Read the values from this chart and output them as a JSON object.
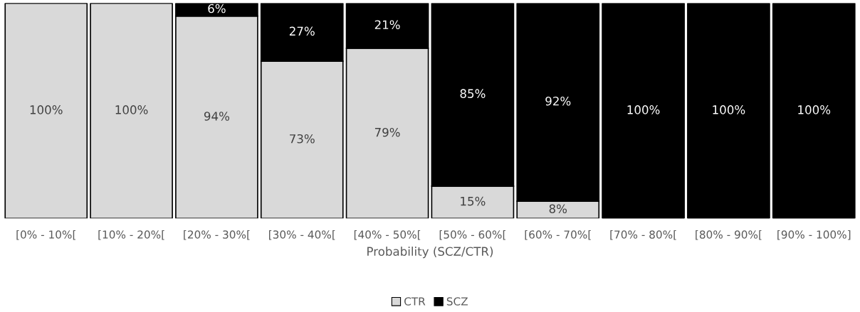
{
  "chart_data": {
    "type": "bar",
    "stacked": true,
    "xlabel": "Probability (SCZ/CTR)",
    "categories": [
      "[0% - 10%[",
      "[10% - 20%[",
      "[20% - 30%[",
      "[30% - 40%[",
      "[40% - 50%[",
      "[50% - 60%[",
      "[60% - 70%[",
      "[70% - 80%[",
      "[80% - 90%[",
      "[90% - 100%]"
    ],
    "series": [
      {
        "name": "CTR",
        "color": "#d9d9d9",
        "values": [
          100,
          100,
          94,
          73,
          79,
          15,
          8,
          0,
          0,
          0
        ],
        "value_labels": [
          "100%",
          "100%",
          "94%",
          "73%",
          "79%",
          "15%",
          "8%",
          null,
          null,
          null
        ]
      },
      {
        "name": "SCZ",
        "color": "#000000",
        "values": [
          0,
          0,
          6,
          27,
          21,
          85,
          92,
          100,
          100,
          100
        ],
        "value_labels": [
          null,
          null,
          "6%",
          "27%",
          "21%",
          "85%",
          "92%",
          "100%",
          "100%",
          "100%"
        ]
      }
    ],
    "ylim": [
      0,
      100
    ],
    "tick_labels": "x",
    "legend": "bottom"
  }
}
